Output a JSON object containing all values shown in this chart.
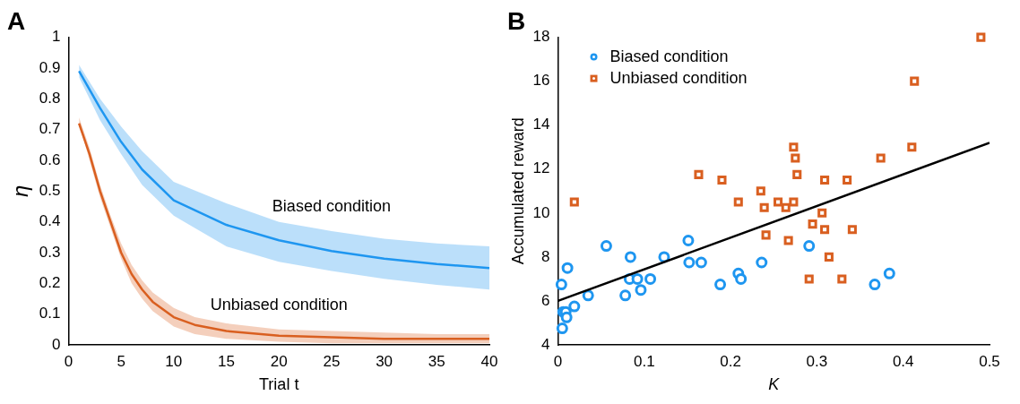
{
  "chart_data": [
    {
      "type": "line",
      "title": "A",
      "xlabel": "Trial t",
      "ylabel": "η",
      "xlim": [
        0,
        40
      ],
      "xticks": [
        0,
        5,
        10,
        15,
        20,
        25,
        30,
        35,
        40
      ],
      "ylim": [
        0,
        1
      ],
      "yticks": [
        0,
        0.1,
        0.2,
        0.3,
        0.4,
        0.5,
        0.6,
        0.7,
        0.8,
        0.9,
        1
      ],
      "grid": false,
      "legend": false,
      "marker": "none",
      "line_style": "solid",
      "series": [
        {
          "name": "Biased condition",
          "color": "#1e96f0",
          "x": [
            1,
            3,
            5,
            7,
            10,
            15,
            20,
            25,
            30,
            35,
            40
          ],
          "values": [
            0.89,
            0.77,
            0.66,
            0.57,
            0.47,
            0.39,
            0.34,
            0.305,
            0.28,
            0.263,
            0.25
          ],
          "lower": [
            0.87,
            0.73,
            0.62,
            0.52,
            0.42,
            0.32,
            0.27,
            0.24,
            0.215,
            0.195,
            0.18
          ],
          "upper": [
            0.91,
            0.8,
            0.71,
            0.63,
            0.53,
            0.46,
            0.4,
            0.37,
            0.345,
            0.33,
            0.32
          ]
        },
        {
          "name": "Unbiased condition",
          "color": "#d95f20",
          "x": [
            1,
            2,
            3,
            4,
            5,
            6,
            7,
            8,
            10,
            12,
            15,
            20,
            25,
            30,
            35,
            40
          ],
          "values": [
            0.72,
            0.62,
            0.5,
            0.4,
            0.3,
            0.23,
            0.18,
            0.14,
            0.09,
            0.065,
            0.045,
            0.03,
            0.025,
            0.02,
            0.02,
            0.02
          ],
          "lower": [
            0.72,
            0.6,
            0.48,
            0.38,
            0.28,
            0.2,
            0.15,
            0.11,
            0.06,
            0.035,
            0.02,
            0.01,
            0.005,
            0.005,
            0.005,
            0.005
          ],
          "upper": [
            0.74,
            0.64,
            0.52,
            0.42,
            0.33,
            0.26,
            0.21,
            0.17,
            0.12,
            0.09,
            0.07,
            0.05,
            0.045,
            0.04,
            0.035,
            0.035
          ]
        }
      ]
    },
    {
      "type": "scatter",
      "title": "B",
      "xlabel": "K",
      "ylabel": "Accumulated reward",
      "xlim": [
        0,
        0.5
      ],
      "xticks": [
        0,
        0.1,
        0.2,
        0.3,
        0.4,
        0.5
      ],
      "ylim": [
        4,
        18
      ],
      "yticks": [
        4,
        6,
        8,
        10,
        12,
        14,
        16,
        18
      ],
      "grid": false,
      "legend": "top left",
      "series": [
        {
          "name": "Biased condition",
          "color": "#1e96f0",
          "marker": "circle",
          "x": [
            0.004,
            0.005,
            0.006,
            0.009,
            0.01,
            0.011,
            0.019,
            0.035,
            0.056,
            0.078,
            0.084,
            0.083,
            0.092,
            0.096,
            0.107,
            0.123,
            0.151,
            0.152,
            0.166,
            0.188,
            0.209,
            0.212,
            0.236,
            0.291,
            0.367,
            0.384
          ],
          "values": [
            6.75,
            4.75,
            5.5,
            5.5,
            5.25,
            7.5,
            5.75,
            6.25,
            8.5,
            6.25,
            8.0,
            7.0,
            7.0,
            6.5,
            7.0,
            8.0,
            8.75,
            7.75,
            7.75,
            6.75,
            7.25,
            7.0,
            7.75,
            8.5,
            6.75,
            7.25
          ]
        },
        {
          "name": "Unbiased condition",
          "color": "#d95f20",
          "marker": "square",
          "x": [
            0.019,
            0.163,
            0.19,
            0.209,
            0.235,
            0.239,
            0.241,
            0.255,
            0.264,
            0.267,
            0.273,
            0.273,
            0.275,
            0.277,
            0.291,
            0.295,
            0.306,
            0.309,
            0.309,
            0.314,
            0.329,
            0.335,
            0.341,
            0.374,
            0.41,
            0.413,
            0.49
          ],
          "values": [
            10.5,
            11.75,
            11.5,
            10.5,
            11.0,
            10.25,
            9.0,
            10.5,
            10.25,
            8.75,
            10.5,
            13.0,
            12.5,
            11.75,
            7.0,
            9.5,
            10.0,
            11.5,
            9.25,
            8.0,
            7.0,
            11.5,
            9.25,
            12.5,
            13.0,
            16.0,
            18.0
          ]
        },
        {
          "type": "line",
          "color": "#000000",
          "marker": "none",
          "x": [
            0,
            0.5
          ],
          "values": [
            6.0,
            13.2
          ]
        }
      ]
    }
  ]
}
